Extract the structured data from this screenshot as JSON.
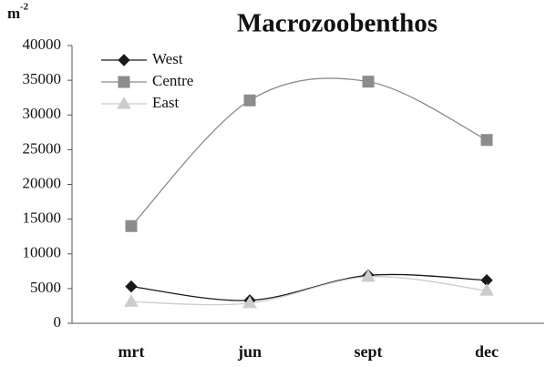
{
  "chart_data": {
    "type": "line",
    "title": "Macrozoobenthos",
    "y_label": "m",
    "y_label_superscript": "-2",
    "categories": [
      "mrt",
      "jun",
      "sept",
      "dec"
    ],
    "series": [
      {
        "name": "West",
        "color": "#1a1a1a",
        "marker": "diamond",
        "values": [
          5300,
          3300,
          6900,
          6200
        ]
      },
      {
        "name": "Centre",
        "color": "#8c8c8c",
        "marker": "square",
        "values": [
          14000,
          32100,
          34800,
          26400
        ]
      },
      {
        "name": "East",
        "color": "#cccccc",
        "marker": "triangle",
        "values": [
          3100,
          2900,
          6700,
          4700
        ]
      }
    ],
    "ylim": [
      0,
      40000
    ],
    "yticks": [
      0,
      5000,
      10000,
      15000,
      20000,
      25000,
      30000,
      35000,
      40000
    ],
    "smooth": true,
    "legend": "upper left"
  }
}
